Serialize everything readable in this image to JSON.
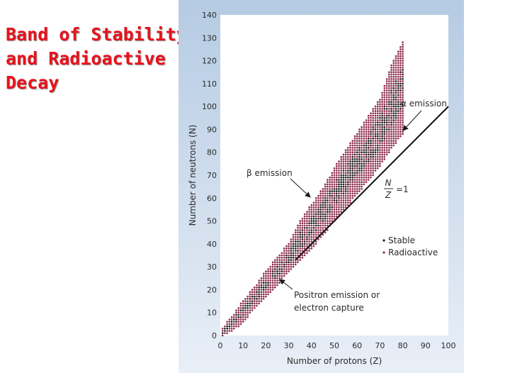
{
  "slide": {
    "title_lines": [
      "Band of Stability",
      "and Radioactive",
      "Decay"
    ],
    "title_color": "#e8121c"
  },
  "chart_data": {
    "type": "scatter",
    "title": "",
    "xlabel": "Number of protons (Z)",
    "ylabel": "Number of neutrons (N)",
    "xlim": [
      0,
      100
    ],
    "ylim": [
      0,
      140
    ],
    "x_ticks": [
      "0",
      "10",
      "20",
      "30",
      "40",
      "50",
      "60",
      "70",
      "80",
      "90",
      "100"
    ],
    "y_ticks": [
      "0",
      "10",
      "20",
      "30",
      "40",
      "50",
      "60",
      "70",
      "80",
      "90",
      "100",
      "110",
      "120",
      "130",
      "140"
    ],
    "grid": false,
    "legend_position": "right",
    "series": [
      {
        "name": "Stable",
        "color": "#1a1a1a"
      },
      {
        "name": "Radioactive",
        "color": "#8c2a4c"
      }
    ],
    "band": {
      "description_free_points_Z_Nlow_Nhigh": [
        [
          1,
          0,
          3
        ],
        [
          5,
          2,
          8
        ],
        [
          10,
          6,
          15
        ],
        [
          15,
          12,
          21
        ],
        [
          20,
          17,
          28
        ],
        [
          25,
          22,
          34
        ],
        [
          30,
          28,
          40
        ],
        [
          35,
          33,
          50
        ],
        [
          40,
          38,
          57
        ],
        [
          45,
          44,
          64
        ],
        [
          50,
          50,
          73
        ],
        [
          55,
          56,
          81
        ],
        [
          60,
          62,
          88
        ],
        [
          65,
          68,
          96
        ],
        [
          70,
          74,
          103
        ],
        [
          75,
          82,
          118
        ],
        [
          80,
          88,
          128
        ]
      ],
      "stable_upto_Z": 83
    },
    "reference_line": {
      "label_num": "N",
      "label_den": "Z",
      "label_value": "=1",
      "from": [
        33,
        33
      ],
      "to": [
        100,
        100
      ]
    },
    "annotations": {
      "alpha": {
        "greek": "α",
        "text": " emission"
      },
      "beta": {
        "greek": "β",
        "text": " emission"
      },
      "positron_line1": "Positron emission or",
      "positron_line2": "electron capture"
    }
  }
}
